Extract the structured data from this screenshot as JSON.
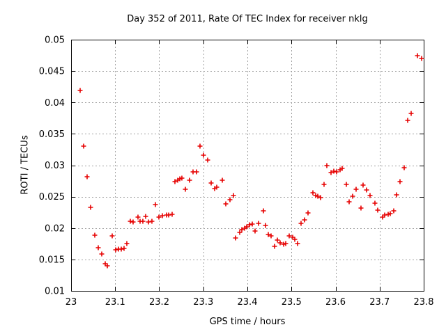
{
  "chart_data": {
    "type": "scatter",
    "title": "Day 352 of 2011, Rate Of TEC Index for receiver nklg",
    "xlabel": "GPS time / hours",
    "ylabel": "ROTI / TECUs",
    "xlim": [
      23,
      23.8
    ],
    "ylim": [
      0.01,
      0.05
    ],
    "x_tick_values": [
      23,
      23.1,
      23.2,
      23.3,
      23.4,
      23.5,
      23.6,
      23.7,
      23.8
    ],
    "x_tick_labels": [
      "23",
      "23.1",
      "23.2",
      "23.3",
      "23.4",
      "23.5",
      "23.6",
      "23.7",
      "23.8"
    ],
    "y_tick_values": [
      0.01,
      0.015,
      0.02,
      0.025,
      0.03,
      0.035,
      0.04,
      0.045,
      0.05
    ],
    "y_tick_labels": [
      "0.01",
      "0.015",
      "0.02",
      "0.025",
      "0.03",
      "0.035",
      "0.04",
      "0.045",
      "0.05"
    ],
    "grid": true,
    "legend_position": "none",
    "marker": {
      "shape": "plus",
      "color": "#e60000",
      "size": 7
    },
    "series": [
      {
        "name": "ROTI",
        "points": [
          [
            23.021,
            0.0419
          ],
          [
            23.028,
            0.0331
          ],
          [
            23.036,
            0.0282
          ],
          [
            23.044,
            0.0233
          ],
          [
            23.053,
            0.0189
          ],
          [
            23.061,
            0.0169
          ],
          [
            23.069,
            0.0159
          ],
          [
            23.077,
            0.0143
          ],
          [
            23.083,
            0.014
          ],
          [
            23.094,
            0.0187
          ],
          [
            23.101,
            0.0165
          ],
          [
            23.107,
            0.0166
          ],
          [
            23.114,
            0.0167
          ],
          [
            23.12,
            0.0168
          ],
          [
            23.127,
            0.0175
          ],
          [
            23.135,
            0.0211
          ],
          [
            23.141,
            0.021
          ],
          [
            23.151,
            0.0217
          ],
          [
            23.157,
            0.0211
          ],
          [
            23.163,
            0.0211
          ],
          [
            23.169,
            0.0219
          ],
          [
            23.175,
            0.021
          ],
          [
            23.183,
            0.0211
          ],
          [
            23.192,
            0.0237
          ],
          [
            23.2,
            0.0218
          ],
          [
            23.207,
            0.022
          ],
          [
            23.216,
            0.0221
          ],
          [
            23.222,
            0.0221
          ],
          [
            23.23,
            0.0222
          ],
          [
            23.235,
            0.0274
          ],
          [
            23.242,
            0.0276
          ],
          [
            23.247,
            0.0278
          ],
          [
            23.252,
            0.0279
          ],
          [
            23.26,
            0.0262
          ],
          [
            23.268,
            0.0276
          ],
          [
            23.276,
            0.029
          ],
          [
            23.284,
            0.029
          ],
          [
            23.293,
            0.033
          ],
          [
            23.3,
            0.0316
          ],
          [
            23.31,
            0.0308
          ],
          [
            23.318,
            0.0272
          ],
          [
            23.325,
            0.0263
          ],
          [
            23.331,
            0.0265
          ],
          [
            23.343,
            0.0276
          ],
          [
            23.351,
            0.0239
          ],
          [
            23.36,
            0.0245
          ],
          [
            23.368,
            0.0252
          ],
          [
            23.373,
            0.0184
          ],
          [
            23.382,
            0.0193
          ],
          [
            23.388,
            0.0197
          ],
          [
            23.394,
            0.02
          ],
          [
            23.399,
            0.0202
          ],
          [
            23.404,
            0.0205
          ],
          [
            23.411,
            0.0206
          ],
          [
            23.417,
            0.0195
          ],
          [
            23.425,
            0.0208
          ],
          [
            23.436,
            0.0227
          ],
          [
            23.441,
            0.0204
          ],
          [
            23.447,
            0.019
          ],
          [
            23.453,
            0.0187
          ],
          [
            23.461,
            0.0171
          ],
          [
            23.468,
            0.0181
          ],
          [
            23.475,
            0.0176
          ],
          [
            23.482,
            0.0174
          ],
          [
            23.487,
            0.0175
          ],
          [
            23.495,
            0.0188
          ],
          [
            23.502,
            0.0185
          ],
          [
            23.507,
            0.0182
          ],
          [
            23.514,
            0.0175
          ],
          [
            23.521,
            0.0208
          ],
          [
            23.529,
            0.0213
          ],
          [
            23.537,
            0.0224
          ],
          [
            23.548,
            0.0256
          ],
          [
            23.555,
            0.0252
          ],
          [
            23.56,
            0.0251
          ],
          [
            23.566,
            0.0248
          ],
          [
            23.574,
            0.0269
          ],
          [
            23.581,
            0.03
          ],
          [
            23.59,
            0.0288
          ],
          [
            23.596,
            0.0291
          ],
          [
            23.603,
            0.0289
          ],
          [
            23.61,
            0.0293
          ],
          [
            23.615,
            0.0295
          ],
          [
            23.625,
            0.027
          ],
          [
            23.631,
            0.0242
          ],
          [
            23.638,
            0.0251
          ],
          [
            23.647,
            0.0262
          ],
          [
            23.658,
            0.0232
          ],
          [
            23.663,
            0.0268
          ],
          [
            23.67,
            0.0261
          ],
          [
            23.678,
            0.0252
          ],
          [
            23.689,
            0.024
          ],
          [
            23.695,
            0.0228
          ],
          [
            23.706,
            0.0218
          ],
          [
            23.712,
            0.0221
          ],
          [
            23.719,
            0.0222
          ],
          [
            23.724,
            0.0223
          ],
          [
            23.732,
            0.0227
          ],
          [
            23.739,
            0.0253
          ],
          [
            23.747,
            0.0274
          ],
          [
            23.756,
            0.0296
          ],
          [
            23.764,
            0.0372
          ],
          [
            23.772,
            0.0383
          ],
          [
            23.786,
            0.0475
          ],
          [
            23.795,
            0.047
          ]
        ]
      }
    ]
  },
  "colors": {
    "background": "#ffffff",
    "axis": "#000000",
    "grid": "#a0a0a0",
    "text": "#000000",
    "marker": "#e60000"
  }
}
